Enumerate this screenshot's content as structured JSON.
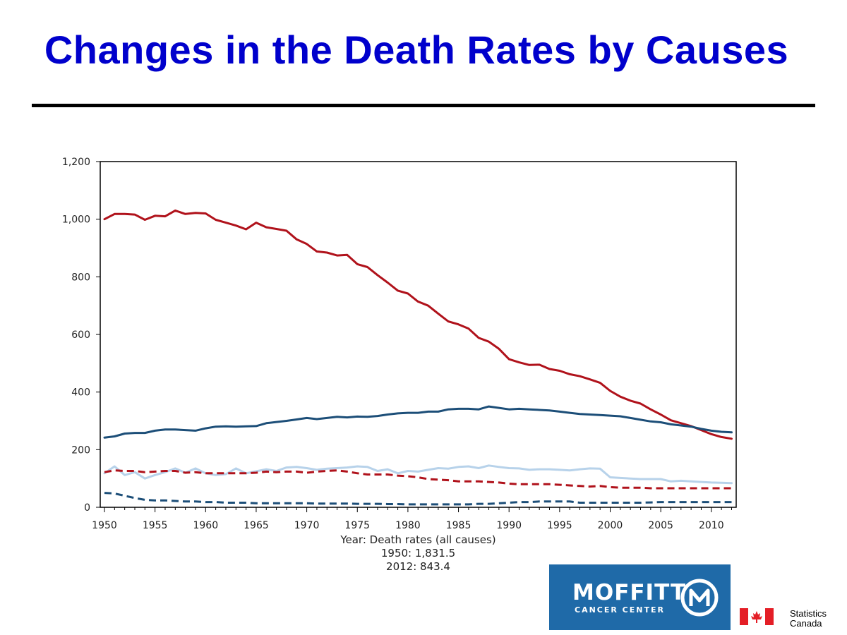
{
  "slide": {
    "title": "Changes in the Death Rates by Causes"
  },
  "chart_data": {
    "type": "line",
    "title": "",
    "xlabel": "Year: Death rates (all causes)",
    "xlabel_notes": [
      "1950: 1,831.5",
      "2012: 843.4"
    ],
    "ylabel": "",
    "xlim": [
      1950,
      2012.5
    ],
    "ylim": [
      0,
      1200
    ],
    "xticks": [
      1950,
      1955,
      1960,
      1965,
      1970,
      1975,
      1980,
      1985,
      1990,
      1995,
      2000,
      2005,
      2010
    ],
    "yticks": [
      0,
      200,
      400,
      600,
      800,
      1000,
      1200
    ],
    "ytick_labels": [
      "0",
      "200",
      "400",
      "600",
      "800",
      "1,000",
      "1,200"
    ],
    "series": [
      {
        "name": "series-dark-red-solid",
        "color": "#b0121b",
        "dash": "solid",
        "x": [
          1950,
          1951,
          1952,
          1953,
          1954,
          1955,
          1956,
          1957,
          1958,
          1959,
          1960,
          1961,
          1962,
          1963,
          1964,
          1965,
          1966,
          1967,
          1968,
          1969,
          1970,
          1971,
          1972,
          1973,
          1974,
          1975,
          1976,
          1977,
          1978,
          1979,
          1980,
          1981,
          1982,
          1983,
          1984,
          1985,
          1986,
          1987,
          1988,
          1989,
          1990,
          1991,
          1992,
          1993,
          1994,
          1995,
          1996,
          1997,
          1998,
          1999,
          2000,
          2001,
          2002,
          2003,
          2004,
          2005,
          2006,
          2007,
          2008,
          2009,
          2010,
          2011,
          2012
        ],
        "values": [
          1000,
          1018,
          1018,
          1016,
          998,
          1012,
          1010,
          1030,
          1018,
          1022,
          1020,
          998,
          988,
          978,
          965,
          988,
          972,
          966,
          960,
          930,
          914,
          888,
          884,
          874,
          876,
          844,
          834,
          806,
          780,
          752,
          742,
          714,
          700,
          672,
          645,
          635,
          620,
          588,
          575,
          550,
          514,
          503,
          494,
          495,
          480,
          474,
          462,
          455,
          444,
          432,
          404,
          384,
          370,
          360,
          340,
          322,
          302,
          292,
          282,
          268,
          254,
          244,
          238
        ]
      },
      {
        "name": "series-dark-blue-solid",
        "color": "#1c4e78",
        "dash": "solid",
        "x": [
          1950,
          1951,
          1952,
          1953,
          1954,
          1955,
          1956,
          1957,
          1958,
          1959,
          1960,
          1961,
          1962,
          1963,
          1964,
          1965,
          1966,
          1967,
          1968,
          1969,
          1970,
          1971,
          1972,
          1973,
          1974,
          1975,
          1976,
          1977,
          1978,
          1979,
          1980,
          1981,
          1982,
          1983,
          1984,
          1985,
          1986,
          1987,
          1988,
          1989,
          1990,
          1991,
          1992,
          1993,
          1994,
          1995,
          1996,
          1997,
          1998,
          1999,
          2000,
          2001,
          2002,
          2003,
          2004,
          2005,
          2006,
          2007,
          2008,
          2009,
          2010,
          2011,
          2012
        ],
        "values": [
          242,
          246,
          256,
          258,
          258,
          266,
          270,
          270,
          268,
          266,
          274,
          280,
          281,
          280,
          281,
          282,
          292,
          296,
          300,
          305,
          310,
          306,
          310,
          314,
          312,
          315,
          314,
          317,
          322,
          326,
          328,
          328,
          332,
          332,
          340,
          342,
          342,
          340,
          350,
          345,
          340,
          342,
          340,
          338,
          336,
          332,
          328,
          324,
          322,
          320,
          318,
          316,
          310,
          304,
          298,
          295,
          288,
          284,
          280,
          272,
          266,
          262,
          260
        ]
      },
      {
        "name": "series-light-blue-solid",
        "color": "#b7d2ea",
        "dash": "solid",
        "x": [
          1950,
          1951,
          1952,
          1953,
          1954,
          1955,
          1956,
          1957,
          1958,
          1959,
          1960,
          1961,
          1962,
          1963,
          1964,
          1965,
          1966,
          1967,
          1968,
          1969,
          1970,
          1971,
          1972,
          1973,
          1974,
          1975,
          1976,
          1977,
          1978,
          1979,
          1980,
          1981,
          1982,
          1983,
          1984,
          1985,
          1986,
          1987,
          1988,
          1989,
          1990,
          1991,
          1992,
          1993,
          1994,
          1995,
          1996,
          1997,
          1998,
          1999,
          2000,
          2001,
          2002,
          2003,
          2004,
          2005,
          2006,
          2007,
          2008,
          2009,
          2010,
          2011,
          2012
        ],
        "values": [
          118,
          142,
          112,
          122,
          100,
          112,
          122,
          135,
          120,
          135,
          118,
          112,
          115,
          135,
          118,
          125,
          132,
          126,
          138,
          140,
          136,
          130,
          134,
          136,
          138,
          142,
          140,
          126,
          132,
          118,
          126,
          124,
          130,
          136,
          134,
          140,
          142,
          136,
          145,
          140,
          136,
          135,
          130,
          132,
          132,
          130,
          128,
          132,
          135,
          134,
          104,
          102,
          100,
          98,
          98,
          98,
          90,
          92,
          90,
          88,
          86,
          85,
          84
        ]
      },
      {
        "name": "series-dark-red-dashed",
        "color": "#b0121b",
        "dash": "dashed",
        "x": [
          1950,
          1951,
          1952,
          1953,
          1954,
          1955,
          1956,
          1957,
          1958,
          1959,
          1960,
          1961,
          1962,
          1963,
          1964,
          1965,
          1966,
          1967,
          1968,
          1969,
          1970,
          1971,
          1972,
          1973,
          1974,
          1975,
          1976,
          1977,
          1978,
          1979,
          1980,
          1981,
          1982,
          1983,
          1984,
          1985,
          1986,
          1987,
          1988,
          1989,
          1990,
          1991,
          1992,
          1993,
          1994,
          1995,
          1996,
          1997,
          1998,
          1999,
          2000,
          2001,
          2002,
          2003,
          2004,
          2005,
          2006,
          2007,
          2008,
          2009,
          2010,
          2011,
          2012
        ],
        "values": [
          122,
          128,
          126,
          126,
          122,
          124,
          126,
          126,
          120,
          122,
          118,
          118,
          118,
          118,
          118,
          120,
          124,
          122,
          124,
          124,
          120,
          124,
          126,
          128,
          124,
          118,
          114,
          114,
          114,
          110,
          108,
          104,
          98,
          96,
          94,
          90,
          90,
          90,
          88,
          86,
          82,
          80,
          80,
          80,
          80,
          78,
          76,
          74,
          72,
          74,
          70,
          68,
          68,
          68,
          66,
          66,
          66,
          66,
          66,
          66,
          66,
          66,
          66
        ]
      },
      {
        "name": "series-dark-blue-dashed",
        "color": "#1c4e78",
        "dash": "dashed",
        "x": [
          1950,
          1951,
          1952,
          1953,
          1954,
          1955,
          1956,
          1957,
          1958,
          1959,
          1960,
          1961,
          1962,
          1963,
          1964,
          1965,
          1966,
          1967,
          1968,
          1969,
          1970,
          1971,
          1972,
          1973,
          1974,
          1975,
          1976,
          1977,
          1978,
          1979,
          1980,
          1981,
          1982,
          1983,
          1984,
          1985,
          1986,
          1987,
          1988,
          1989,
          1990,
          1991,
          1992,
          1993,
          1994,
          1995,
          1996,
          1997,
          1998,
          1999,
          2000,
          2001,
          2002,
          2003,
          2004,
          2005,
          2006,
          2007,
          2008,
          2009,
          2010,
          2011,
          2012
        ],
        "values": [
          50,
          48,
          40,
          32,
          26,
          24,
          24,
          22,
          20,
          20,
          18,
          18,
          16,
          16,
          16,
          14,
          14,
          14,
          14,
          14,
          14,
          13,
          13,
          13,
          13,
          12,
          12,
          12,
          11,
          11,
          10,
          10,
          10,
          10,
          10,
          10,
          10,
          12,
          12,
          14,
          16,
          18,
          18,
          20,
          20,
          20,
          20,
          16,
          16,
          16,
          16,
          16,
          16,
          16,
          17,
          18,
          18,
          18,
          18,
          18,
          18,
          18,
          18
        ]
      }
    ]
  },
  "logos": {
    "moffitt_name": "MOFFITT",
    "moffitt_sub": "CANCER CENTER",
    "statcan_line1": "Statistics",
    "statcan_line2": "Canada",
    "moffitt_color": "#1f6aa8",
    "flag_red": "#e41e26"
  }
}
